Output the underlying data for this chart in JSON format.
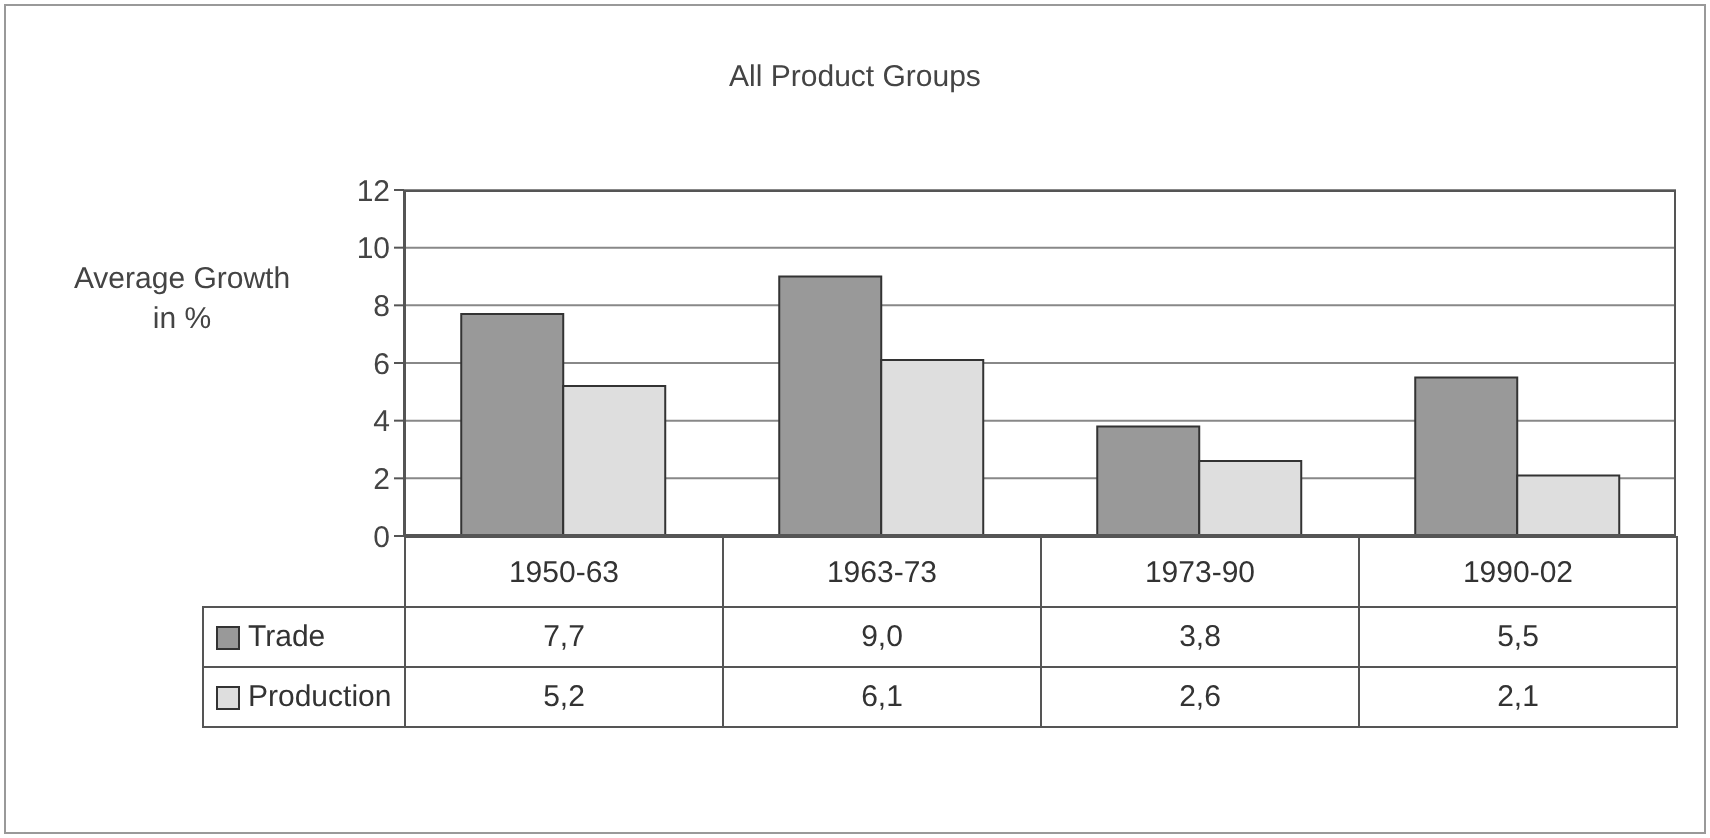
{
  "chart_data": {
    "type": "bar",
    "title": "All Product Groups",
    "ylabel": "Average Growth in %",
    "categories": [
      "1950-63",
      "1963-73",
      "1973-90",
      "1990-02"
    ],
    "series": [
      {
        "name": "Trade",
        "color": "#999999",
        "values": [
          7.7,
          9.0,
          3.8,
          5.5
        ],
        "value_labels": [
          "7,7",
          "9,0",
          "3,8",
          "5,5"
        ]
      },
      {
        "name": "Production",
        "color": "#dedede",
        "values": [
          5.2,
          6.1,
          2.6,
          2.1
        ],
        "value_labels": [
          "5,2",
          "6,1",
          "2,6",
          "2,1"
        ]
      }
    ],
    "ylim": [
      0,
      12
    ],
    "yticks": [
      0,
      2,
      4,
      6,
      8,
      10,
      12
    ],
    "grid": "y",
    "legend": "bottom"
  }
}
